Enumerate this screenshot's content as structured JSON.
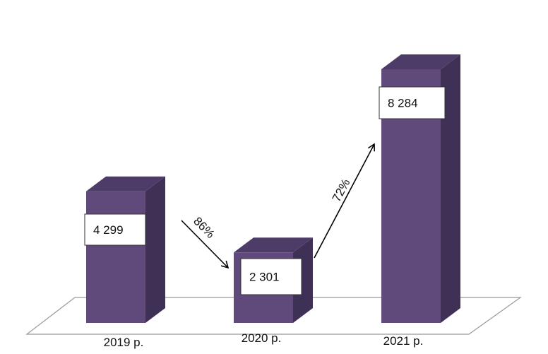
{
  "chart_data": {
    "type": "bar",
    "categories": [
      "2019 р.",
      "2020 р.",
      "2021 р."
    ],
    "values": [
      4299,
      2301,
      8284
    ],
    "value_labels": [
      "4 299",
      "2 301",
      "8 284"
    ],
    "ylim": [
      0,
      8600
    ],
    "grid": false,
    "legend": "none",
    "annotations": [
      {
        "from": "2019 р.",
        "to": "2020 р.",
        "text": "86%",
        "direction": "down"
      },
      {
        "from": "2020 р.",
        "to": "2021 р.",
        "text": "72%",
        "direction": "up"
      }
    ],
    "colors": {
      "bar_front": "#604A7B",
      "bar_top": "#4E3C68",
      "bar_side": "#3F3155",
      "floor_line": "#999999",
      "label_box_border": "#333333",
      "arrow": "#000000"
    }
  }
}
